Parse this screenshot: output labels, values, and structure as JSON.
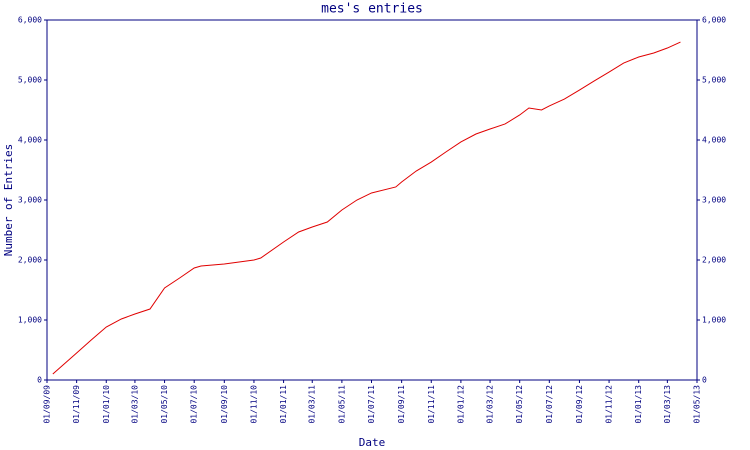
{
  "chart_data": {
    "type": "line",
    "title": "mes's entries",
    "x_label": "Date",
    "y_label": "Number of Entries",
    "x": [
      "2009-09-13",
      "2009-11-01",
      "2009-12-01",
      "2010-01-01",
      "2010-02-01",
      "2010-03-01",
      "2010-04-01",
      "2010-05-01",
      "2010-06-01",
      "2010-07-01",
      "2010-07-15",
      "2010-09-01",
      "2010-11-01",
      "2010-11-15",
      "2011-01-01",
      "2011-02-01",
      "2011-03-01",
      "2011-04-01",
      "2011-05-01",
      "2011-06-01",
      "2011-07-01",
      "2011-08-20",
      "2011-09-01",
      "2011-10-01",
      "2011-11-01",
      "2011-12-01",
      "2012-01-01",
      "2012-02-01",
      "2012-03-01",
      "2012-04-01",
      "2012-05-01",
      "2012-05-20",
      "2012-06-15",
      "2012-07-01",
      "2012-08-01",
      "2012-09-01",
      "2012-10-01",
      "2012-11-01",
      "2012-12-01",
      "2013-01-01",
      "2013-02-01",
      "2013-03-01",
      "2013-03-28"
    ],
    "series": [
      {
        "name": "Entries",
        "color": "#e00000",
        "values": [
          100,
          450,
          667,
          883,
          1017,
          1100,
          1183,
          1533,
          1700,
          1867,
          1900,
          1933,
          2000,
          2033,
          2300,
          2467,
          2550,
          2633,
          2833,
          3000,
          3117,
          3217,
          3300,
          3483,
          3633,
          3800,
          3967,
          4100,
          4183,
          4267,
          4417,
          4533,
          4500,
          4567,
          4683,
          4833,
          4983,
          5133,
          5283,
          5383,
          5450,
          5533,
          5633
        ]
      }
    ],
    "xlim": [
      "2009-09-01",
      "2013-05-01"
    ],
    "xticks": [
      {
        "value": "2009-09-01",
        "label": "01/09/09"
      },
      {
        "value": "2009-11-01",
        "label": "01/11/09"
      },
      {
        "value": "2010-01-01",
        "label": "01/01/10"
      },
      {
        "value": "2010-03-01",
        "label": "01/03/10"
      },
      {
        "value": "2010-05-01",
        "label": "01/05/10"
      },
      {
        "value": "2010-07-01",
        "label": "01/07/10"
      },
      {
        "value": "2010-09-01",
        "label": "01/09/10"
      },
      {
        "value": "2010-11-01",
        "label": "01/11/10"
      },
      {
        "value": "2011-01-01",
        "label": "01/01/11"
      },
      {
        "value": "2011-03-01",
        "label": "01/03/11"
      },
      {
        "value": "2011-05-01",
        "label": "01/05/11"
      },
      {
        "value": "2011-07-01",
        "label": "01/07/11"
      },
      {
        "value": "2011-09-01",
        "label": "01/09/11"
      },
      {
        "value": "2011-11-01",
        "label": "01/11/11"
      },
      {
        "value": "2012-01-01",
        "label": "01/01/12"
      },
      {
        "value": "2012-03-01",
        "label": "01/03/12"
      },
      {
        "value": "2012-05-01",
        "label": "01/05/12"
      },
      {
        "value": "2012-07-01",
        "label": "01/07/12"
      },
      {
        "value": "2012-09-01",
        "label": "01/09/12"
      },
      {
        "value": "2012-11-01",
        "label": "01/11/12"
      },
      {
        "value": "2013-01-01",
        "label": "01/01/13"
      },
      {
        "value": "2013-03-01",
        "label": "01/03/13"
      },
      {
        "value": "2013-05-01",
        "label": "01/05/13"
      }
    ],
    "ylim": [
      0,
      6000
    ],
    "yticks": [
      0,
      {
        "value": 1000,
        "label": "1,000"
      },
      {
        "value": 2000,
        "label": "2,000"
      },
      {
        "value": 3000,
        "label": "3,000"
      },
      {
        "value": 4000,
        "label": "4,000"
      },
      {
        "value": 5000,
        "label": "5,000"
      },
      {
        "value": 6000,
        "label": "6,000"
      }
    ],
    "y2lim": [
      0,
      6000
    ],
    "y2ticks": [
      0,
      {
        "value": 1000,
        "label": "1,000"
      },
      {
        "value": 2000,
        "label": "2,000"
      },
      {
        "value": 3000,
        "label": "3,000"
      },
      {
        "value": 4000,
        "label": "4,000"
      },
      {
        "value": 5000,
        "label": "5,000"
      },
      {
        "value": 6000,
        "label": "6,000"
      }
    ]
  }
}
